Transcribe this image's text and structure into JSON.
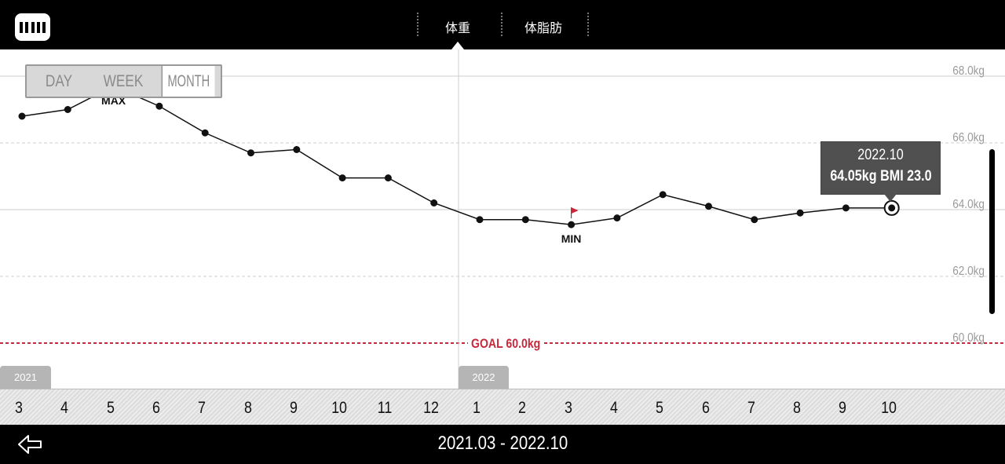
{
  "header": {
    "tabs": [
      {
        "label": "体重",
        "active": true
      },
      {
        "label": "体脂肪",
        "active": false
      }
    ]
  },
  "range_switch": {
    "options": [
      "DAY",
      "WEEK",
      "MONTH"
    ],
    "selected": "MONTH"
  },
  "tooltip": {
    "date": "2022.10",
    "value": "64.05kg  BMI 23.0"
  },
  "year_tabs": [
    "2021",
    "2022"
  ],
  "markers": {
    "max_label": "MAX",
    "min_label": "MIN",
    "goal_label": "GOAL 60.0kg"
  },
  "footer": {
    "date_range": "2021.03 - 2022.10"
  },
  "colors": {
    "goal_line": "#c8283c",
    "flag": "#c8283c",
    "line": "#111111",
    "grid": "#cccccc"
  },
  "chart_data": {
    "type": "line",
    "categories": [
      "3",
      "4",
      "5",
      "6",
      "7",
      "8",
      "9",
      "10",
      "11",
      "12",
      "1",
      "2",
      "3",
      "4",
      "5",
      "6",
      "7",
      "8",
      "9",
      "10"
    ],
    "series": [
      {
        "values": [
          66.8,
          67.0,
          67.7,
          67.1,
          66.3,
          65.7,
          65.8,
          64.95,
          64.95,
          64.2,
          63.7,
          63.7,
          63.55,
          63.75,
          64.45,
          64.1,
          63.7,
          63.9,
          64.05,
          64.05
        ]
      }
    ],
    "y_tick_labels": [
      "68.0kg",
      "66.0kg",
      "64.0kg",
      "62.0kg",
      "60.0kg"
    ],
    "y_ticks": [
      68,
      66,
      64,
      62,
      60
    ],
    "goal": 60.0,
    "max_index": 2,
    "min_index": 12,
    "selected_index": 19,
    "grid": true
  }
}
